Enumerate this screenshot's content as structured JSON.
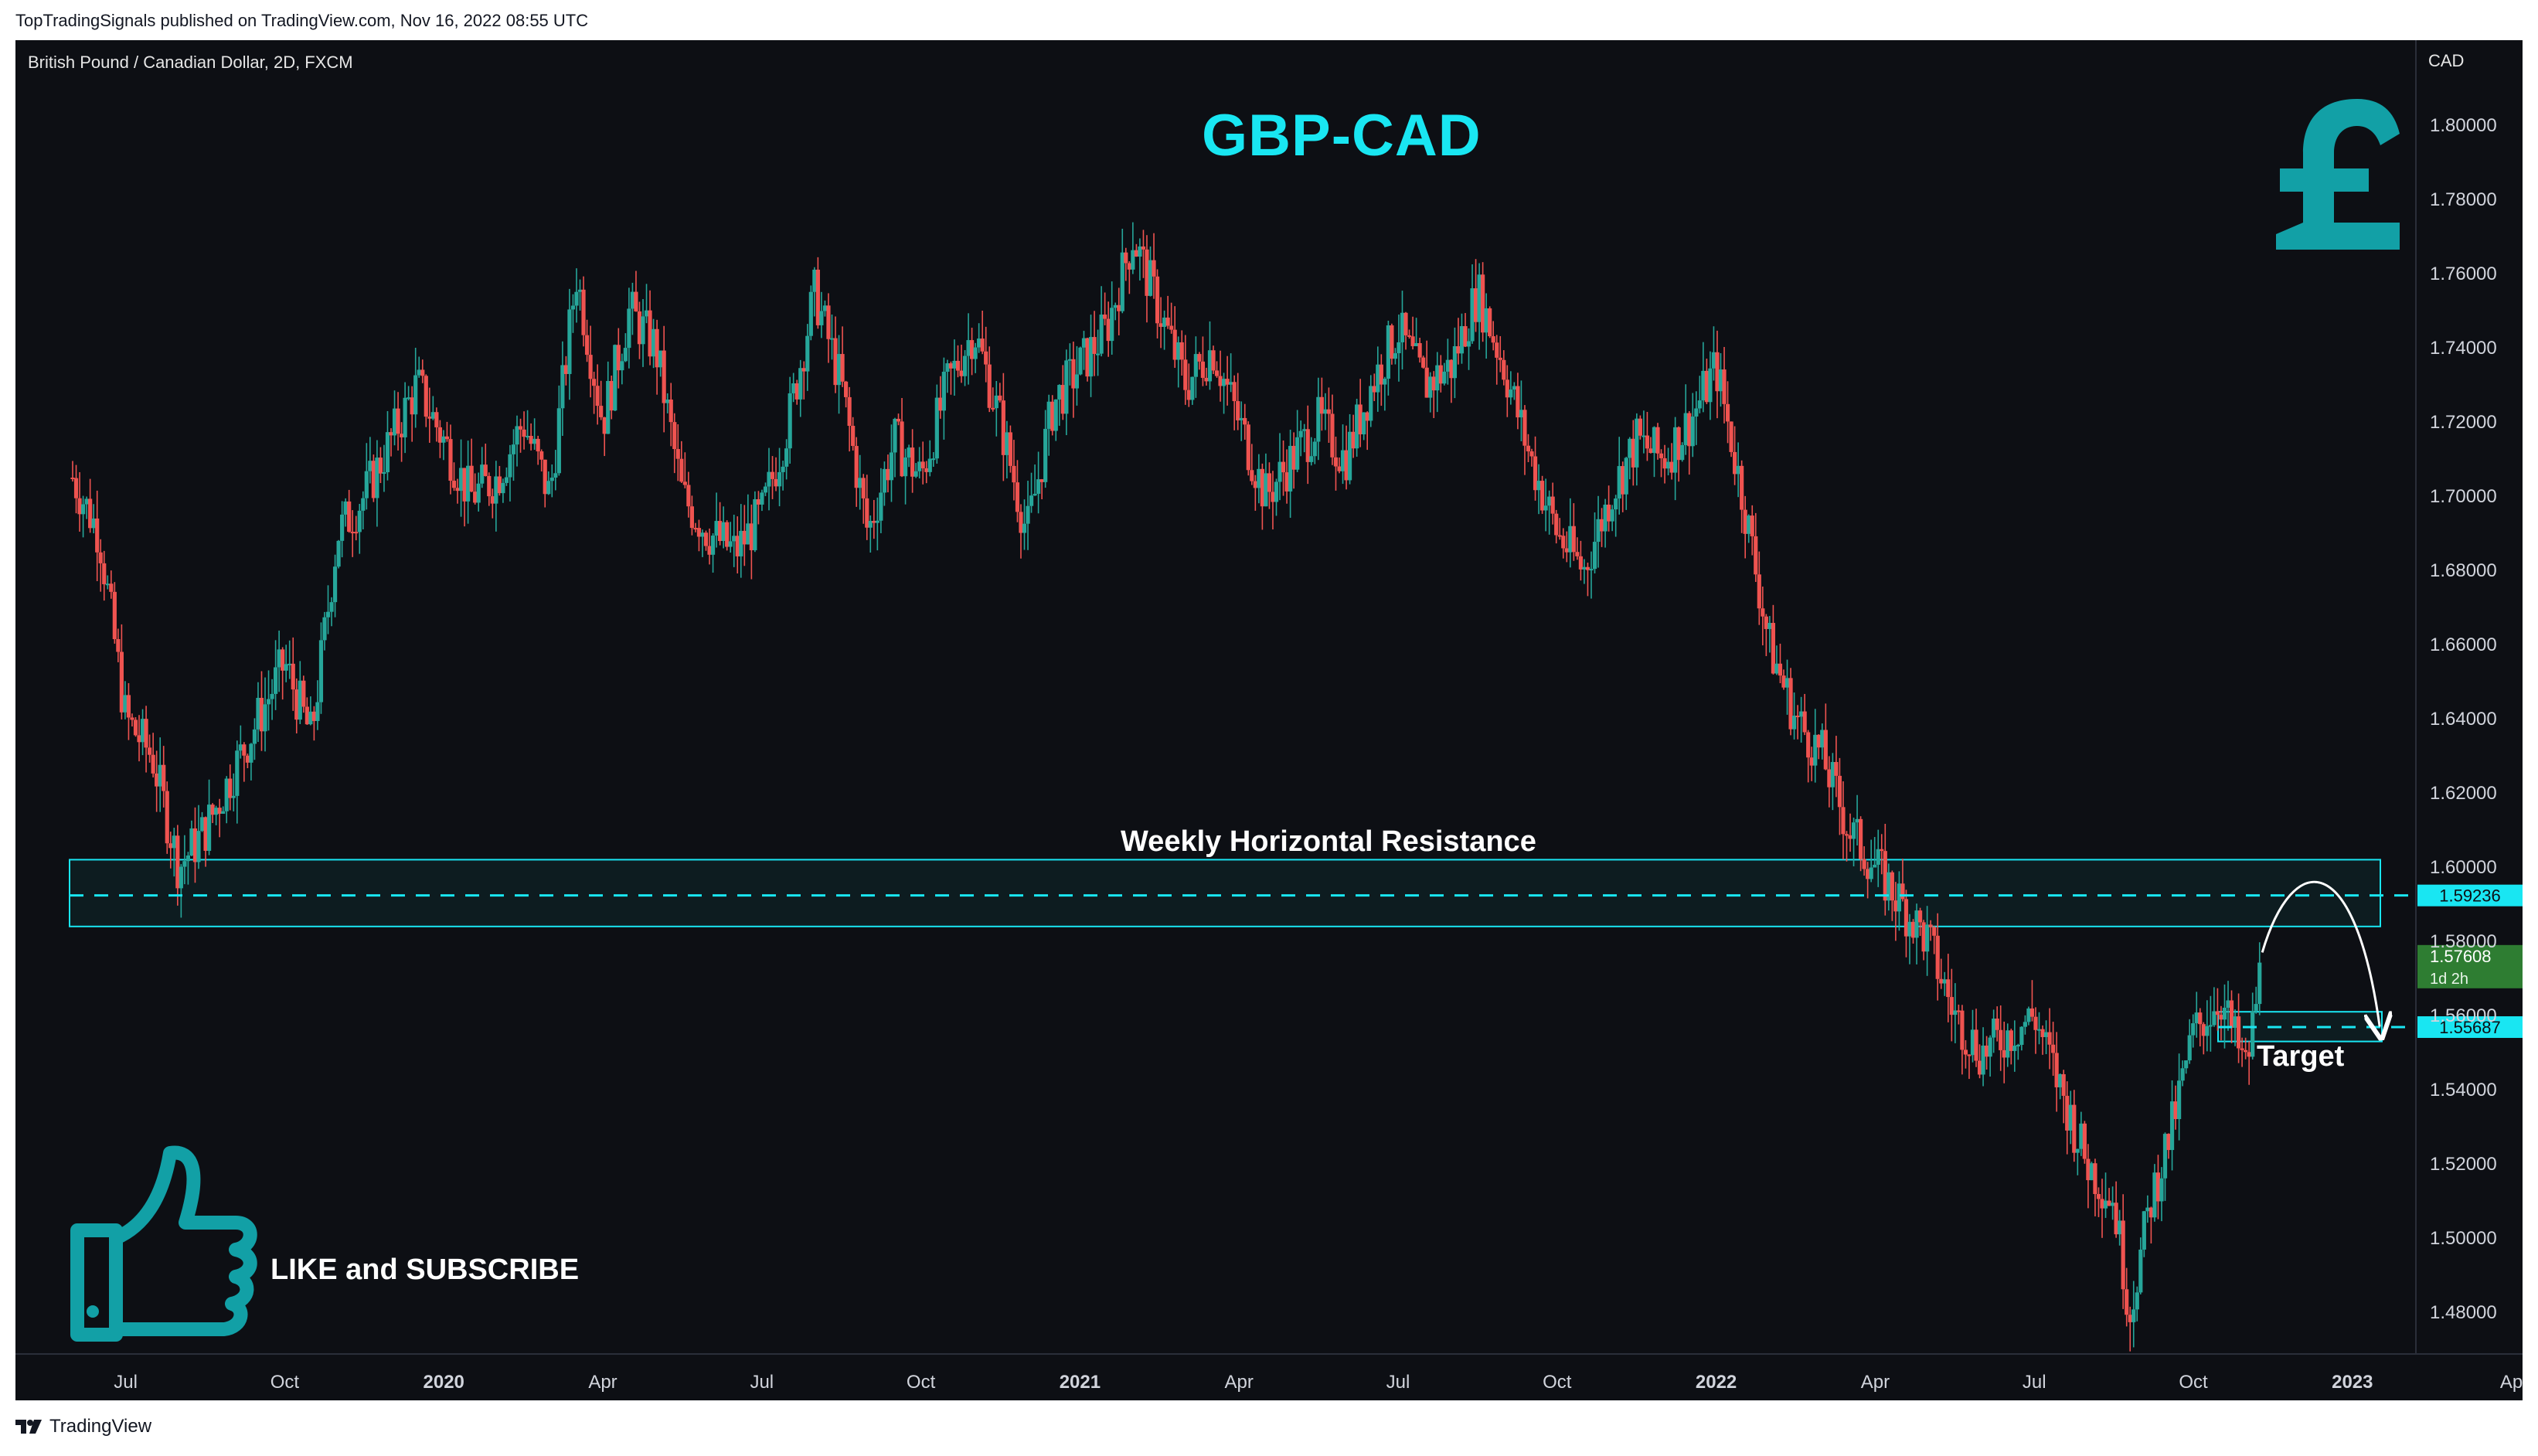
{
  "header": {
    "published": "TopTradingSignals published on TradingView.com, Nov 16, 2022 08:55 UTC"
  },
  "chart_header": {
    "instrument": "British Pound / Canadian Dollar, 2D, FXCM",
    "currency": "CAD"
  },
  "annotations": {
    "title": "GBP-CAD",
    "zone_label": "Weekly Horizontal Resistance",
    "target_label": "Target",
    "cta": "LIKE and SUBSCRIBE"
  },
  "footer": {
    "brand": "TradingView"
  },
  "colors": {
    "up": "#26a69a",
    "down": "#ef5350",
    "accent": "#19e6f2",
    "teal_logo": "#12a0a6",
    "bg": "#0d0f14"
  },
  "chart_data": {
    "type": "candlestick",
    "ylim": [
      1.465,
      1.815
    ],
    "y_ticks": [
      "1.80000",
      "1.78000",
      "1.76000",
      "1.74000",
      "1.72000",
      "1.70000",
      "1.68000",
      "1.66000",
      "1.64000",
      "1.62000",
      "1.60000",
      "1.58000",
      "1.56000",
      "1.54000",
      "1.52000",
      "1.50000",
      "1.48000"
    ],
    "x_ticks": [
      {
        "label": "Jul",
        "t": 1.0,
        "bold": false
      },
      {
        "label": "Oct",
        "t": 4.0,
        "bold": false
      },
      {
        "label": "2020",
        "t": 7.0,
        "bold": true
      },
      {
        "label": "Apr",
        "t": 10.0,
        "bold": false
      },
      {
        "label": "Jul",
        "t": 13.0,
        "bold": false
      },
      {
        "label": "Oct",
        "t": 16.0,
        "bold": false
      },
      {
        "label": "2021",
        "t": 19.0,
        "bold": true
      },
      {
        "label": "Apr",
        "t": 22.0,
        "bold": false
      },
      {
        "label": "Jul",
        "t": 25.0,
        "bold": false
      },
      {
        "label": "Oct",
        "t": 28.0,
        "bold": false
      },
      {
        "label": "2022",
        "t": 31.0,
        "bold": true
      },
      {
        "label": "Apr",
        "t": 34.0,
        "bold": false
      },
      {
        "label": "Jul",
        "t": 37.0,
        "bold": false
      },
      {
        "label": "Oct",
        "t": 40.0,
        "bold": false
      },
      {
        "label": "2023",
        "t": 43.0,
        "bold": true
      },
      {
        "label": "Ap",
        "t": 46.0,
        "bold": false
      }
    ],
    "x_range_months": [
      0,
      46.0
    ],
    "path_points": [
      [
        0.0,
        1.705
      ],
      [
        0.5,
        1.69
      ],
      [
        1.0,
        1.64
      ],
      [
        1.5,
        1.63
      ],
      [
        2.0,
        1.6
      ],
      [
        2.5,
        1.61
      ],
      [
        3.0,
        1.625
      ],
      [
        3.5,
        1.64
      ],
      [
        4.0,
        1.655
      ],
      [
        4.5,
        1.635
      ],
      [
        5.0,
        1.69
      ],
      [
        5.5,
        1.7
      ],
      [
        6.0,
        1.715
      ],
      [
        6.5,
        1.73
      ],
      [
        7.0,
        1.715
      ],
      [
        7.5,
        1.7
      ],
      [
        8.0,
        1.705
      ],
      [
        8.5,
        1.72
      ],
      [
        9.0,
        1.7
      ],
      [
        9.5,
        1.76
      ],
      [
        10.0,
        1.72
      ],
      [
        10.5,
        1.75
      ],
      [
        11.0,
        1.74
      ],
      [
        11.5,
        1.7
      ],
      [
        12.0,
        1.69
      ],
      [
        12.5,
        1.685
      ],
      [
        13.0,
        1.695
      ],
      [
        13.5,
        1.72
      ],
      [
        14.0,
        1.755
      ],
      [
        14.5,
        1.73
      ],
      [
        15.0,
        1.69
      ],
      [
        15.5,
        1.715
      ],
      [
        16.0,
        1.705
      ],
      [
        16.5,
        1.73
      ],
      [
        17.0,
        1.745
      ],
      [
        17.5,
        1.72
      ],
      [
        18.0,
        1.69
      ],
      [
        18.5,
        1.725
      ],
      [
        19.0,
        1.735
      ],
      [
        19.5,
        1.745
      ],
      [
        20.0,
        1.77
      ],
      [
        20.5,
        1.75
      ],
      [
        21.0,
        1.73
      ],
      [
        21.5,
        1.74
      ],
      [
        22.0,
        1.72
      ],
      [
        22.5,
        1.7
      ],
      [
        23.0,
        1.71
      ],
      [
        23.5,
        1.72
      ],
      [
        24.0,
        1.71
      ],
      [
        24.5,
        1.73
      ],
      [
        25.0,
        1.745
      ],
      [
        25.5,
        1.73
      ],
      [
        26.0,
        1.735
      ],
      [
        26.5,
        1.755
      ],
      [
        27.0,
        1.735
      ],
      [
        27.5,
        1.71
      ],
      [
        28.0,
        1.69
      ],
      [
        28.5,
        1.68
      ],
      [
        29.0,
        1.7
      ],
      [
        29.5,
        1.715
      ],
      [
        30.0,
        1.71
      ],
      [
        30.5,
        1.72
      ],
      [
        31.0,
        1.735
      ],
      [
        31.5,
        1.7
      ],
      [
        32.0,
        1.66
      ],
      [
        32.5,
        1.64
      ],
      [
        33.0,
        1.63
      ],
      [
        33.5,
        1.61
      ],
      [
        34.0,
        1.6
      ],
      [
        34.5,
        1.59
      ],
      [
        35.0,
        1.58
      ],
      [
        35.5,
        1.56
      ],
      [
        36.0,
        1.55
      ],
      [
        36.5,
        1.555
      ],
      [
        37.0,
        1.56
      ],
      [
        37.5,
        1.54
      ],
      [
        38.0,
        1.52
      ],
      [
        38.5,
        1.51
      ],
      [
        38.8,
        1.48
      ],
      [
        39.2,
        1.51
      ],
      [
        39.6,
        1.53
      ],
      [
        40.0,
        1.555
      ],
      [
        40.5,
        1.565
      ],
      [
        41.0,
        1.545
      ],
      [
        41.3,
        1.576
      ]
    ],
    "levels": [
      {
        "value": 1.59236,
        "label": "1.59236",
        "style": "dashed"
      },
      {
        "value": 1.55687,
        "label": "1.55687",
        "style": "dashed"
      }
    ],
    "zones": [
      {
        "name": "Weekly Horizontal Resistance",
        "y0": 1.584,
        "y1": 1.602
      },
      {
        "name": "Target",
        "y0": 1.553,
        "y1": 1.561
      }
    ],
    "last_price": {
      "value": 1.57608,
      "label": "1.57608",
      "countdown": "1d 2h"
    }
  }
}
